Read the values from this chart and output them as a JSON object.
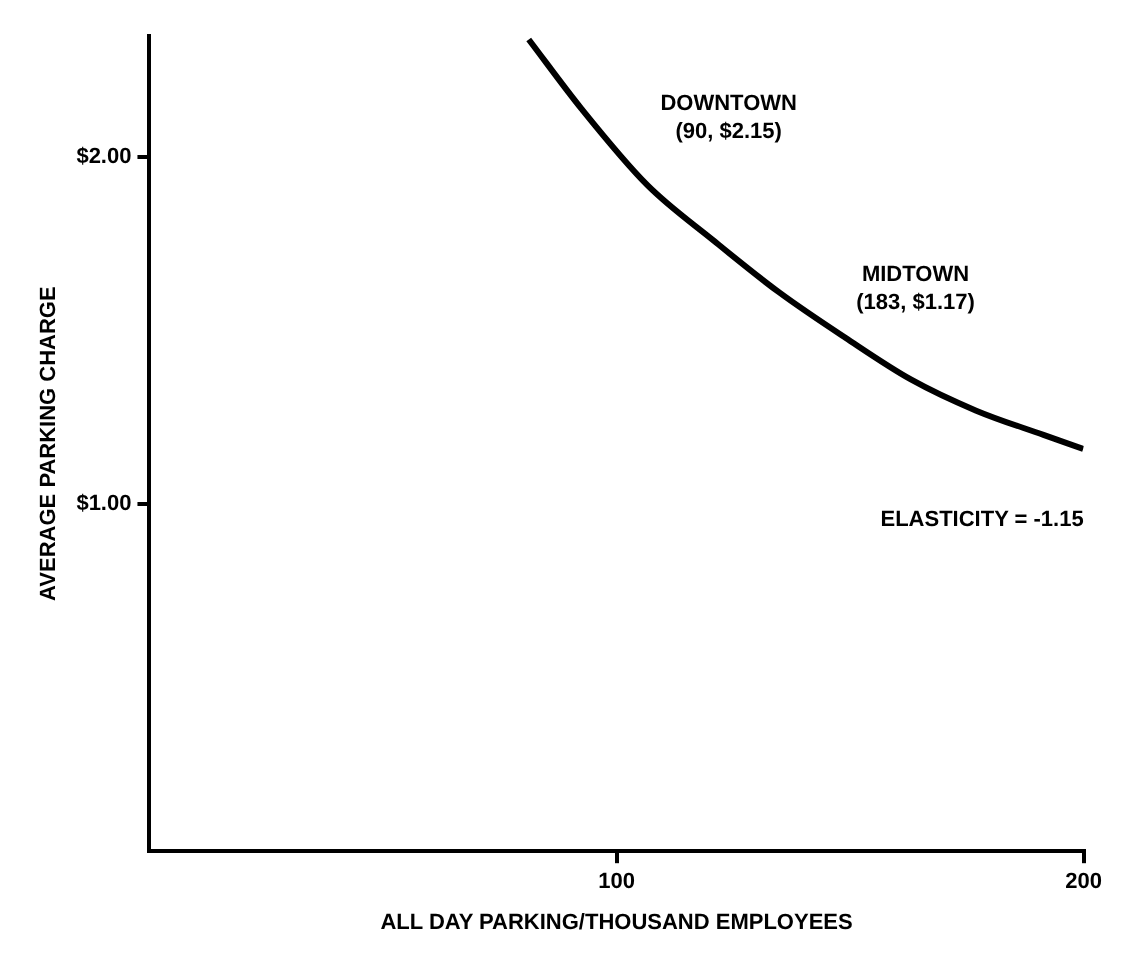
{
  "chart_data": {
    "type": "line",
    "xlabel": "ALL DAY PARKING/THOUSAND EMPLOYEES",
    "ylabel": "AVERAGE PARKING CHARGE",
    "x": [
      81.2,
      92.5,
      106.6,
      120.8,
      134.9,
      149,
      163,
      177,
      191.4,
      199.9
    ],
    "series": [
      {
        "color": "#000000",
        "values": [
          2.34,
          2.14,
          1.92,
          1.76,
          1.61,
          1.48,
          1.36,
          1.27,
          1.2,
          1.16
        ]
      }
    ],
    "xlim": [
      0,
      200
    ],
    "xticks": [
      100,
      200
    ],
    "ylim": [
      0,
      2.35
    ],
    "yticks": [
      {
        "value": 2,
        "label": "$2.00"
      },
      {
        "value": 1,
        "label": "$1.00"
      }
    ],
    "annotations": [
      "DOWNTOWN\n(90, $2.15)",
      "MIDTOWN\n(183, $1.17)",
      "ELASTICITY = -1.15"
    ],
    "grid": false,
    "legend": false,
    "marker": "none",
    "line_style": "solid"
  }
}
